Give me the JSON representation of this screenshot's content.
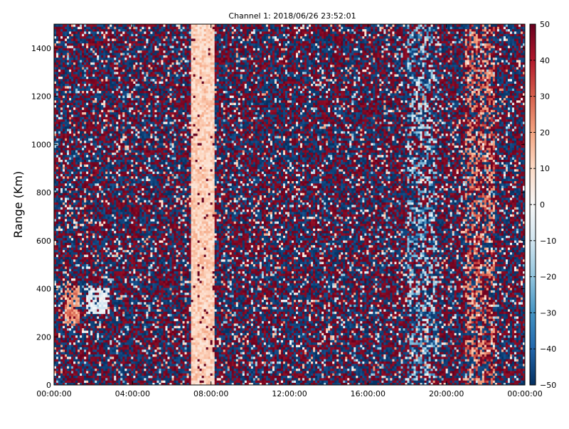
{
  "chart_data": {
    "type": "heatmap",
    "title": "Channel 1: 2018/06/26 23:52:01",
    "xlabel": "",
    "ylabel": "Range (Km)",
    "xlim": [
      "00:00:00",
      "24:00:00"
    ],
    "ylim": [
      0,
      1500
    ],
    "x_ticks": [
      "00:00:00",
      "04:00:00",
      "08:00:00",
      "12:00:00",
      "16:00:00",
      "20:00:00",
      "00:00:00"
    ],
    "y_ticks": [
      0,
      200,
      400,
      600,
      800,
      1000,
      1200,
      1400
    ],
    "colorbar": {
      "range": [
        -50,
        50
      ],
      "ticks": [
        "50",
        "40",
        "30",
        "20",
        "10",
        "0",
        "−10",
        "−20",
        "−30",
        "−40",
        "−50"
      ],
      "colormap": "RdBu_r",
      "colors": [
        "#053061",
        "#2166ac",
        "#4393c3",
        "#92c5de",
        "#d1e5f0",
        "#f7f7f7",
        "#fddbc7",
        "#f4a582",
        "#d6604d",
        "#b2182b",
        "#67001f"
      ]
    },
    "grid": false,
    "notes_visible_features": {
      "noise_field": "values alternate near ±50 across most of the field",
      "low_positive_band_time": [
        "07:00:00",
        "08:10:00"
      ],
      "low_positive_band_value": 12,
      "weak_positive_patch_time": [
        "00:30:00",
        "01:20:00"
      ],
      "weak_positive_patch_range": [
        250,
        420
      ],
      "weak_positive_patch_value": 22,
      "weak_negative_patch_time": [
        "01:40:00",
        "02:50:00"
      ],
      "weak_negative_patch_range": [
        300,
        400
      ],
      "weak_negative_patch_value": -5,
      "weak_negative_region_time": [
        "18:00:00",
        "19:30:00"
      ],
      "weak_negative_region_value": -20,
      "weak_positive_region_time": [
        "21:00:00",
        "22:30:00"
      ],
      "weak_positive_region_value": 25
    }
  }
}
